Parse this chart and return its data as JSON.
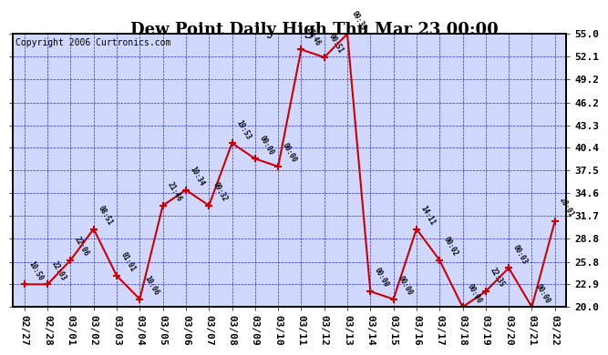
{
  "title": "Dew Point Daily High Thu Mar 23 00:00",
  "copyright": "Copyright 2006 Curtronics.com",
  "x_labels": [
    "02/27",
    "02/28",
    "03/01",
    "03/02",
    "03/03",
    "03/04",
    "03/05",
    "03/06",
    "03/07",
    "03/08",
    "03/09",
    "03/10",
    "03/11",
    "03/12",
    "03/13",
    "03/14",
    "03/15",
    "03/16",
    "03/17",
    "03/18",
    "03/19",
    "03/20",
    "03/21",
    "03/22"
  ],
  "y_values": [
    22.9,
    22.9,
    26.0,
    30.0,
    24.0,
    21.0,
    33.0,
    35.0,
    33.0,
    41.0,
    39.0,
    38.0,
    53.0,
    52.0,
    55.0,
    22.0,
    21.0,
    30.0,
    26.0,
    20.0,
    22.0,
    25.0,
    20.0,
    31.0
  ],
  "point_labels": [
    "10:50",
    "22:03",
    "22:06",
    "08:51",
    "01:01",
    "10:06",
    "21:46",
    "10:34",
    "09:32",
    "19:53",
    "00:00",
    "00:00",
    "17:46",
    "00:51",
    "09:35",
    "00:00",
    "00:00",
    "14:11",
    "00:02",
    "00:00",
    "22:35",
    "00:03",
    "00:00",
    "20:01"
  ],
  "ylim": [
    20.0,
    55.0
  ],
  "yticks": [
    20.0,
    22.9,
    25.8,
    28.8,
    31.7,
    34.6,
    37.5,
    40.4,
    43.3,
    46.2,
    49.2,
    52.1,
    55.0
  ],
  "ytick_labels": [
    "20.0",
    "22.9",
    "25.8",
    "28.8",
    "31.7",
    "34.6",
    "37.5",
    "40.4",
    "43.3",
    "46.2",
    "49.2",
    "52.1",
    "55.0"
  ],
  "line_color": "#CC0000",
  "marker_color": "#CC0000",
  "bg_color": "#D0D8FF",
  "grid_color": "#0000CC",
  "title_color": "black",
  "border_color": "black",
  "label_color": "black",
  "title_fontsize": 13,
  "tick_fontsize": 8,
  "label_fontsize": 6.5,
  "copyright_fontsize": 7
}
